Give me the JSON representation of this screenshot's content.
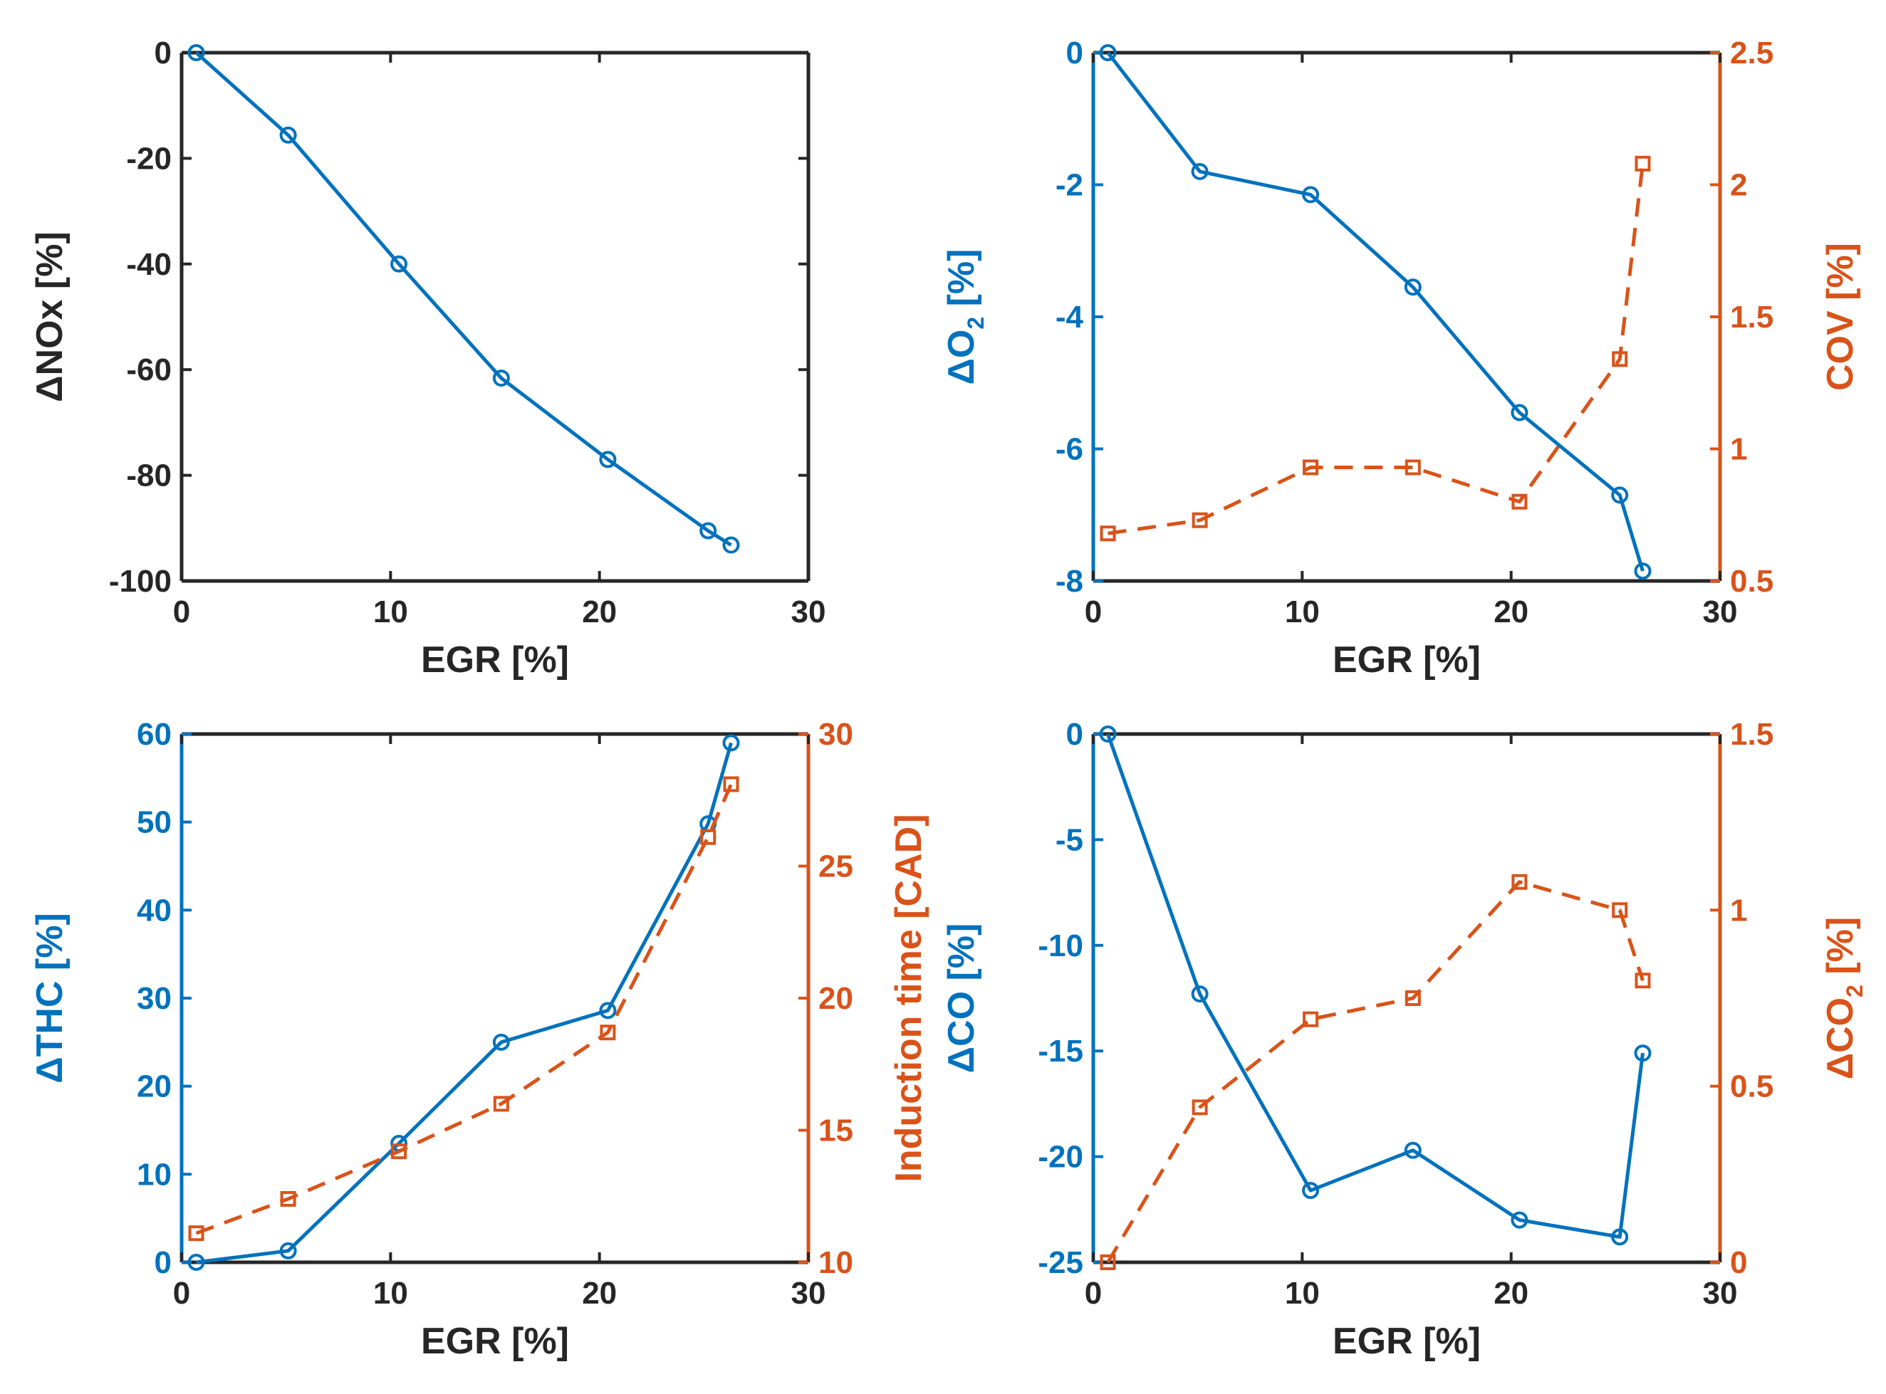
{
  "colors": {
    "primary": "#0072BD",
    "secondary": "#D95319",
    "axis": "#262626"
  },
  "chart_data": [
    {
      "type": "line",
      "panel": "top-left",
      "xlabel": "EGR [%]",
      "ylabel": "ΔNOx [%]",
      "xlim": [
        0,
        30
      ],
      "ylim": [
        -100,
        0
      ],
      "xticks": [
        0,
        10,
        20,
        30
      ],
      "yticks": [
        -100,
        -80,
        -60,
        -40,
        -20,
        0
      ],
      "series": [
        {
          "axis": "left",
          "marker": "circle",
          "line": "solid",
          "color": "#0072BD",
          "x": [
            0.7,
            5.1,
            10.4,
            15.3,
            20.4,
            25.2,
            26.3
          ],
          "y": [
            0,
            -15.6,
            -40,
            -61.6,
            -77,
            -90.5,
            -93.2
          ]
        }
      ]
    },
    {
      "type": "line",
      "panel": "top-right",
      "xlabel": "EGR [%]",
      "ylabel": {
        "main": "ΔO",
        "sub": "2",
        "tail": " [%]"
      },
      "ylabel_right": "COV [%]",
      "xlim": [
        0,
        30
      ],
      "ylim": [
        -8,
        0
      ],
      "ylim_right": [
        0.5,
        2.5
      ],
      "xticks": [
        0,
        10,
        20,
        30
      ],
      "yticks": [
        -8,
        -6,
        -4,
        -2,
        0
      ],
      "yticks_right": [
        0.5,
        1,
        1.5,
        2,
        2.5
      ],
      "series": [
        {
          "axis": "left",
          "marker": "circle",
          "line": "solid",
          "color": "#0072BD",
          "x": [
            0.7,
            5.1,
            10.4,
            15.3,
            20.4,
            25.2,
            26.3
          ],
          "y": [
            0,
            -1.8,
            -2.15,
            -3.55,
            -5.45,
            -6.7,
            -7.85
          ]
        },
        {
          "axis": "right",
          "marker": "square",
          "line": "dashed",
          "color": "#D95319",
          "x": [
            0.7,
            5.1,
            10.4,
            15.3,
            20.4,
            25.2,
            26.3
          ],
          "y": [
            0.68,
            0.73,
            0.93,
            0.93,
            0.8,
            1.34,
            2.08
          ]
        }
      ]
    },
    {
      "type": "line",
      "panel": "bottom-left",
      "xlabel": "EGR [%]",
      "ylabel": "ΔTHC [%]",
      "ylabel_right": "Induction time [CAD]",
      "xlim": [
        0,
        30
      ],
      "ylim": [
        0,
        60
      ],
      "ylim_right": [
        10,
        30
      ],
      "xticks": [
        0,
        10,
        20,
        30
      ],
      "yticks": [
        0,
        10,
        20,
        30,
        40,
        50,
        60
      ],
      "yticks_right": [
        10,
        15,
        20,
        25,
        30
      ],
      "series": [
        {
          "axis": "left",
          "marker": "circle",
          "line": "solid",
          "color": "#0072BD",
          "x": [
            0.7,
            5.1,
            10.4,
            15.3,
            20.4,
            25.2,
            26.3
          ],
          "y": [
            0,
            1.3,
            13.5,
            25,
            28.6,
            49.8,
            59
          ]
        },
        {
          "axis": "right",
          "marker": "square",
          "line": "dashed",
          "color": "#D95319",
          "x": [
            0.7,
            5.1,
            10.4,
            15.3,
            20.4,
            25.2,
            26.3
          ],
          "y": [
            11.1,
            12.4,
            14.2,
            16,
            18.7,
            26.1,
            28.1
          ]
        }
      ]
    },
    {
      "type": "line",
      "panel": "bottom-right",
      "xlabel": "EGR [%]",
      "ylabel": "ΔCO [%]",
      "ylabel_right": {
        "main": "ΔCO",
        "sub": "2",
        "tail": " [%]"
      },
      "xlim": [
        0,
        30
      ],
      "ylim": [
        -25,
        0
      ],
      "ylim_right": [
        0,
        1.5
      ],
      "xticks": [
        0,
        10,
        20,
        30
      ],
      "yticks": [
        -25,
        -20,
        -15,
        -10,
        -5,
        0
      ],
      "yticks_right": [
        0,
        0.5,
        1,
        1.5
      ],
      "series": [
        {
          "axis": "left",
          "marker": "circle",
          "line": "solid",
          "color": "#0072BD",
          "x": [
            0.7,
            5.1,
            10.4,
            15.3,
            20.4,
            25.2,
            26.3
          ],
          "y": [
            0,
            -12.3,
            -21.6,
            -19.7,
            -23,
            -23.8,
            -15.1
          ]
        },
        {
          "axis": "right",
          "marker": "square",
          "line": "dashed",
          "color": "#D95319",
          "x": [
            0.7,
            5.1,
            10.4,
            15.3,
            20.4,
            25.2,
            26.3
          ],
          "y": [
            0,
            0.44,
            0.69,
            0.75,
            1.08,
            1.0,
            0.8
          ]
        }
      ]
    }
  ]
}
